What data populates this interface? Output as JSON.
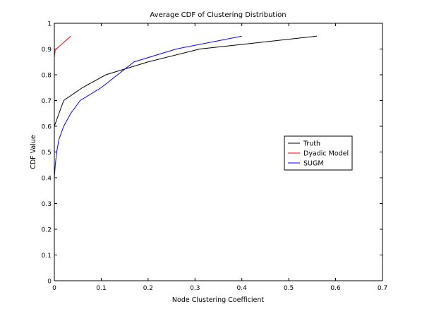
{
  "chart_data": {
    "type": "line",
    "title": "Average CDF of Clustering Distribution",
    "xlabel": "Node Clustering Coefficient",
    "ylabel": "CDF Value",
    "xlim": [
      0,
      0.7
    ],
    "ylim": [
      0,
      1
    ],
    "xticks": [
      0,
      0.1,
      0.2,
      0.3,
      0.4,
      0.5,
      0.6,
      0.7
    ],
    "xtick_labels": [
      "0",
      "0.1",
      "0.2",
      "0.3",
      "0.4",
      "0.5",
      "0.6",
      "0.7"
    ],
    "yticks": [
      0,
      0.1,
      0.2,
      0.3,
      0.4,
      0.5,
      0.6,
      0.7,
      0.8,
      0.9,
      1
    ],
    "ytick_labels": [
      "0",
      "0.1",
      "0.2",
      "0.3",
      "0.4",
      "0.5",
      "0.6",
      "0.7",
      "0.8",
      "0.9",
      "1"
    ],
    "grid": false,
    "legend_position": "right",
    "series": [
      {
        "name": "Truth",
        "color": "#000000",
        "x": [
          0,
          0.02,
          0.06,
          0.11,
          0.2,
          0.31,
          0.41,
          0.56
        ],
        "y": [
          0.6,
          0.7,
          0.75,
          0.8,
          0.85,
          0.9,
          0.92,
          0.95
        ]
      },
      {
        "name": "Dyadic Model",
        "color": "#ff0000",
        "x": [
          0,
          0.001,
          0.002,
          0.004,
          0.035
        ],
        "y": [
          0.86,
          0.88,
          0.9,
          0.9,
          0.95
        ]
      },
      {
        "name": "SUGM",
        "color": "#0000ff",
        "x": [
          0,
          0.002,
          0.005,
          0.01,
          0.02,
          0.035,
          0.055,
          0.1,
          0.17,
          0.26,
          0.4
        ],
        "y": [
          0.4,
          0.45,
          0.5,
          0.55,
          0.6,
          0.65,
          0.7,
          0.75,
          0.85,
          0.9,
          0.95
        ]
      }
    ]
  }
}
